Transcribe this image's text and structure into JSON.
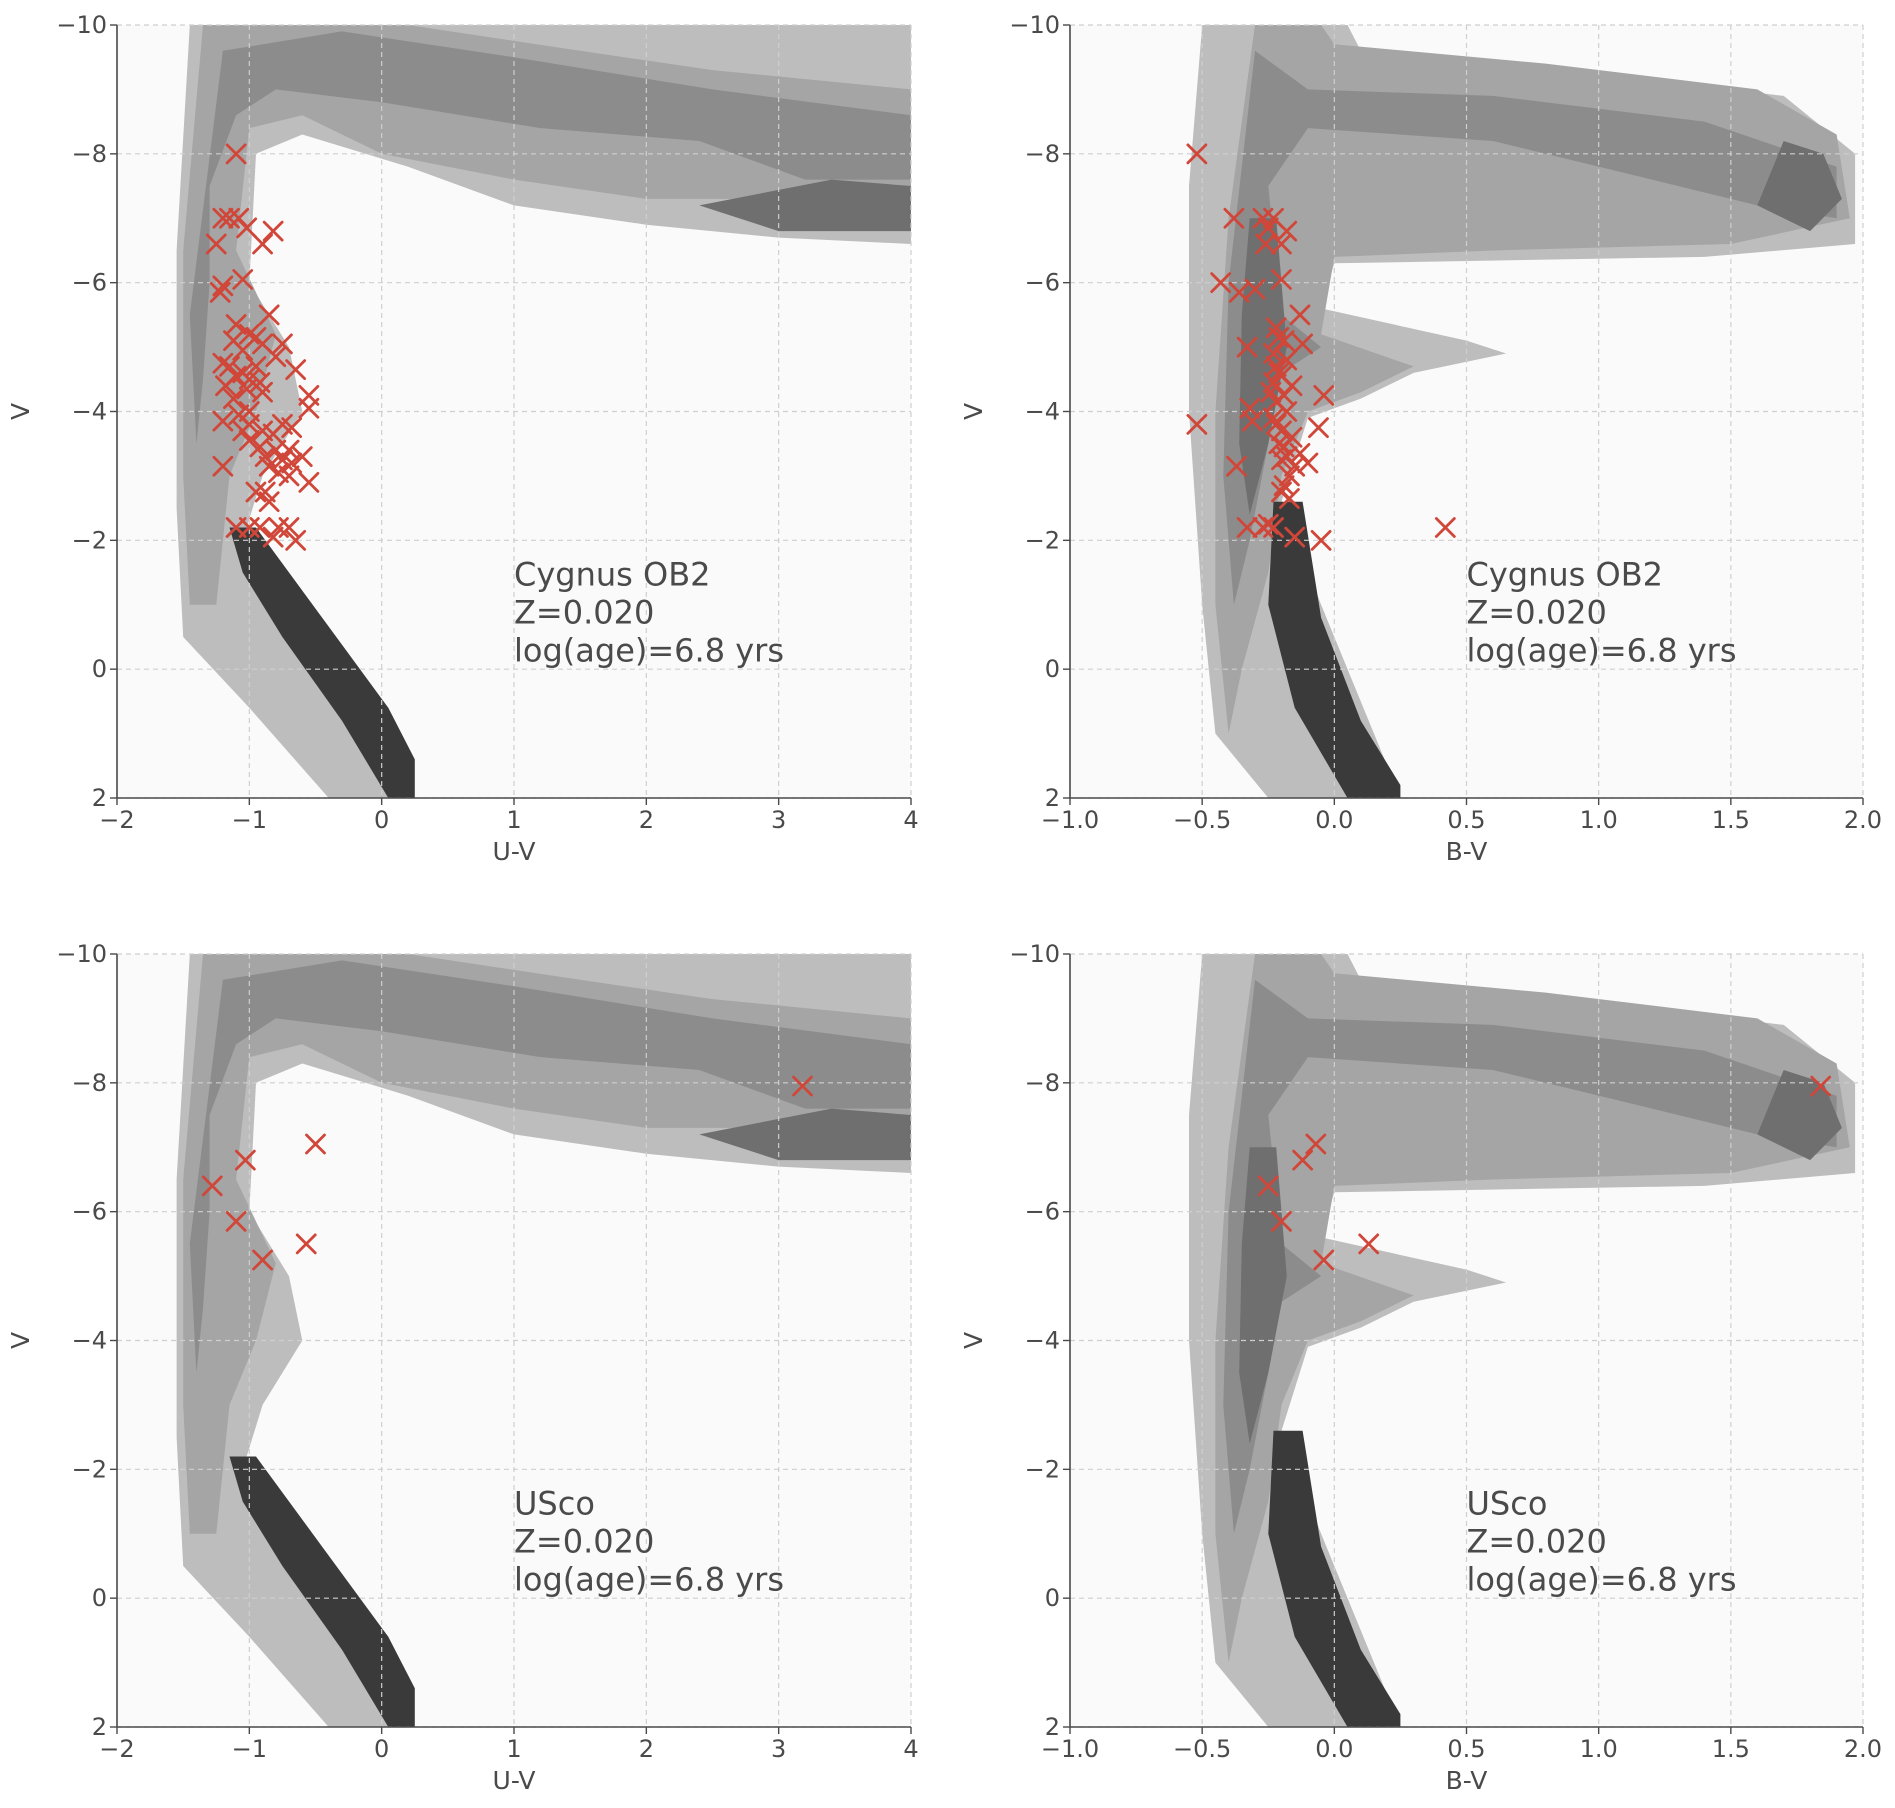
{
  "chart_data": [
    {
      "type": "scatter",
      "panel": "top-left",
      "xlabel": "U-V",
      "ylabel": "V",
      "xlim": [
        -2,
        4
      ],
      "ylim": [
        -10,
        2
      ],
      "y_inverted": true,
      "xticks": [
        -2,
        -1,
        0,
        1,
        2,
        3,
        4
      ],
      "yticks": [
        -10,
        -8,
        -6,
        -4,
        -2,
        0,
        2
      ],
      "xtick_labels": [
        "−2",
        "−1",
        "0",
        "1",
        "2",
        "3",
        "4"
      ],
      "ytick_labels": [
        "−10",
        "−8",
        "−6",
        "−4",
        "−2",
        "0",
        "2"
      ],
      "grid": true,
      "annotation": [
        "Cygnus OB2",
        "Z=0.020",
        "log(age)=6.8 yrs"
      ],
      "annotation_pos": [
        1.0,
        -1.3
      ],
      "marker_color": "#d0473a",
      "marker": "x",
      "background_density": "grayscale filled contours of a synthetic isochrone population",
      "points": [
        [
          -1.1,
          -8.0
        ],
        [
          -1.2,
          -7.0
        ],
        [
          -1.15,
          -7.0
        ],
        [
          -1.08,
          -7.0
        ],
        [
          -1.02,
          -6.85
        ],
        [
          -0.82,
          -6.8
        ],
        [
          -1.25,
          -6.6
        ],
        [
          -0.9,
          -6.6
        ],
        [
          -1.05,
          -6.05
        ],
        [
          -1.2,
          -5.95
        ],
        [
          -1.22,
          -5.85
        ],
        [
          -0.85,
          -5.5
        ],
        [
          -1.1,
          -5.35
        ],
        [
          -1.0,
          -5.2
        ],
        [
          -0.95,
          -5.15
        ],
        [
          -1.12,
          -5.1
        ],
        [
          -0.9,
          -5.05
        ],
        [
          -0.75,
          -5.05
        ],
        [
          -1.05,
          -4.95
        ],
        [
          -0.8,
          -4.85
        ],
        [
          -1.2,
          -4.75
        ],
        [
          -1.15,
          -4.7
        ],
        [
          -0.95,
          -4.7
        ],
        [
          -0.65,
          -4.65
        ],
        [
          -1.05,
          -4.6
        ],
        [
          -1.1,
          -4.55
        ],
        [
          -1.0,
          -4.5
        ],
        [
          -0.92,
          -4.45
        ],
        [
          -1.18,
          -4.4
        ],
        [
          -1.02,
          -4.35
        ],
        [
          -0.9,
          -4.3
        ],
        [
          -0.55,
          -4.25
        ],
        [
          -1.12,
          -4.2
        ],
        [
          -0.55,
          -4.05
        ],
        [
          -1.0,
          -4.0
        ],
        [
          -1.08,
          -3.95
        ],
        [
          -1.2,
          -3.85
        ],
        [
          -1.0,
          -3.8
        ],
        [
          -0.75,
          -3.8
        ],
        [
          -0.68,
          -3.75
        ],
        [
          -1.05,
          -3.7
        ],
        [
          -0.9,
          -3.7
        ],
        [
          -0.82,
          -3.65
        ],
        [
          -1.0,
          -3.55
        ],
        [
          -0.92,
          -3.45
        ],
        [
          -0.7,
          -3.4
        ],
        [
          -0.8,
          -3.4
        ],
        [
          -0.6,
          -3.3
        ],
        [
          -0.88,
          -3.3
        ],
        [
          -0.75,
          -3.25
        ],
        [
          -0.68,
          -3.2
        ],
        [
          -1.2,
          -3.15
        ],
        [
          -0.85,
          -3.15
        ],
        [
          -0.78,
          -3.05
        ],
        [
          -0.7,
          -3.0
        ],
        [
          -0.55,
          -2.9
        ],
        [
          -0.95,
          -2.75
        ],
        [
          -0.88,
          -2.75
        ],
        [
          -0.85,
          -2.6
        ],
        [
          -1.1,
          -2.2
        ],
        [
          -1.0,
          -2.2
        ],
        [
          -0.92,
          -2.2
        ],
        [
          -0.78,
          -2.2
        ],
        [
          -0.7,
          -2.2
        ],
        [
          -0.82,
          -2.05
        ],
        [
          -0.65,
          -2.0
        ]
      ]
    },
    {
      "type": "scatter",
      "panel": "top-right",
      "xlabel": "B-V",
      "ylabel": "V",
      "xlim": [
        -1.0,
        2.0
      ],
      "ylim": [
        -10,
        2
      ],
      "y_inverted": true,
      "xticks": [
        -1.0,
        -0.5,
        0.0,
        0.5,
        1.0,
        1.5,
        2.0
      ],
      "yticks": [
        -10,
        -8,
        -6,
        -4,
        -2,
        0,
        2
      ],
      "xtick_labels": [
        "−1.0",
        "−0.5",
        "0.0",
        "0.5",
        "1.0",
        "1.5",
        "2.0"
      ],
      "ytick_labels": [
        "−10",
        "−8",
        "−6",
        "−4",
        "−2",
        "0",
        "2"
      ],
      "grid": true,
      "annotation": [
        "Cygnus OB2",
        "Z=0.020",
        "log(age)=6.8 yrs"
      ],
      "annotation_pos": [
        0.5,
        -1.3
      ],
      "marker_color": "#d0473a",
      "marker": "x",
      "points": [
        [
          -0.52,
          -8.0
        ],
        [
          -0.38,
          -7.0
        ],
        [
          -0.27,
          -7.0
        ],
        [
          -0.23,
          -7.0
        ],
        [
          -0.25,
          -6.85
        ],
        [
          -0.18,
          -6.8
        ],
        [
          -0.26,
          -6.6
        ],
        [
          -0.2,
          -6.6
        ],
        [
          -0.43,
          -6.0
        ],
        [
          -0.2,
          -6.05
        ],
        [
          -0.36,
          -5.85
        ],
        [
          -0.3,
          -5.9
        ],
        [
          -0.13,
          -5.5
        ],
        [
          -0.22,
          -5.3
        ],
        [
          -0.21,
          -5.15
        ],
        [
          -0.19,
          -5.1
        ],
        [
          -0.12,
          -5.05
        ],
        [
          -0.33,
          -5.0
        ],
        [
          -0.23,
          -4.9
        ],
        [
          -0.18,
          -4.8
        ],
        [
          -0.22,
          -4.7
        ],
        [
          -0.21,
          -4.6
        ],
        [
          -0.2,
          -4.55
        ],
        [
          -0.23,
          -4.45
        ],
        [
          -0.16,
          -4.4
        ],
        [
          -0.24,
          -4.3
        ],
        [
          -0.19,
          -4.25
        ],
        [
          -0.04,
          -4.25
        ],
        [
          -0.22,
          -4.15
        ],
        [
          -0.32,
          -4.05
        ],
        [
          -0.18,
          -4.0
        ],
        [
          -0.23,
          -3.9
        ],
        [
          -0.31,
          -3.85
        ],
        [
          -0.22,
          -3.8
        ],
        [
          -0.52,
          -3.8
        ],
        [
          -0.06,
          -3.75
        ],
        [
          -0.2,
          -3.7
        ],
        [
          -0.16,
          -3.6
        ],
        [
          -0.21,
          -3.5
        ],
        [
          -0.19,
          -3.45
        ],
        [
          -0.13,
          -3.35
        ],
        [
          -0.18,
          -3.3
        ],
        [
          -0.2,
          -3.25
        ],
        [
          -0.1,
          -3.2
        ],
        [
          -0.15,
          -3.15
        ],
        [
          -0.37,
          -3.15
        ],
        [
          -0.17,
          -3.0
        ],
        [
          -0.19,
          -2.85
        ],
        [
          -0.2,
          -2.75
        ],
        [
          -0.17,
          -2.65
        ],
        [
          -0.33,
          -2.2
        ],
        [
          -0.27,
          -2.2
        ],
        [
          -0.23,
          -2.2
        ],
        [
          -0.25,
          -2.25
        ],
        [
          -0.15,
          -2.05
        ],
        [
          -0.05,
          -2.0
        ],
        [
          0.42,
          -2.2
        ]
      ]
    },
    {
      "type": "scatter",
      "panel": "bottom-left",
      "xlabel": "U-V",
      "ylabel": "V",
      "xlim": [
        -2,
        4
      ],
      "ylim": [
        -10,
        2
      ],
      "y_inverted": true,
      "xticks": [
        -2,
        -1,
        0,
        1,
        2,
        3,
        4
      ],
      "yticks": [
        -10,
        -8,
        -6,
        -4,
        -2,
        0,
        2
      ],
      "xtick_labels": [
        "−2",
        "−1",
        "0",
        "1",
        "2",
        "3",
        "4"
      ],
      "ytick_labels": [
        "−10",
        "−8",
        "−6",
        "−4",
        "−2",
        "0",
        "2"
      ],
      "grid": true,
      "annotation": [
        "USco",
        "Z=0.020",
        "log(age)=6.8 yrs"
      ],
      "annotation_pos": [
        1.0,
        -1.3
      ],
      "marker_color": "#d0473a",
      "marker": "x",
      "points": [
        [
          3.18,
          -7.95
        ],
        [
          -0.5,
          -7.05
        ],
        [
          -1.03,
          -6.8
        ],
        [
          -1.28,
          -6.4
        ],
        [
          -1.1,
          -5.85
        ],
        [
          -0.57,
          -5.5
        ],
        [
          -0.9,
          -5.25
        ]
      ]
    },
    {
      "type": "scatter",
      "panel": "bottom-right",
      "xlabel": "B-V",
      "ylabel": "V",
      "xlim": [
        -1.0,
        2.0
      ],
      "ylim": [
        -10,
        2
      ],
      "y_inverted": true,
      "xticks": [
        -1.0,
        -0.5,
        0.0,
        0.5,
        1.0,
        1.5,
        2.0
      ],
      "yticks": [
        -10,
        -8,
        -6,
        -4,
        -2,
        0,
        2
      ],
      "xtick_labels": [
        "−1.0",
        "−0.5",
        "0.0",
        "0.5",
        "1.0",
        "1.5",
        "2.0"
      ],
      "ytick_labels": [
        "−10",
        "−8",
        "−6",
        "−4",
        "−2",
        "0",
        "2"
      ],
      "grid": true,
      "annotation": [
        "USco",
        "Z=0.020",
        "log(age)=6.8 yrs"
      ],
      "annotation_pos": [
        0.5,
        -1.3
      ],
      "marker_color": "#d0473a",
      "marker": "x",
      "points": [
        [
          1.84,
          -7.95
        ],
        [
          -0.07,
          -7.05
        ],
        [
          -0.12,
          -6.8
        ],
        [
          -0.25,
          -6.4
        ],
        [
          -0.2,
          -5.85
        ],
        [
          0.13,
          -5.5
        ],
        [
          -0.04,
          -5.25
        ]
      ]
    }
  ],
  "colors": {
    "axes": "#4a4a4a",
    "grid": "#cfcfcf",
    "marker": "#d0473a",
    "density_levels": [
      "#fafafa",
      "#bdbdbd",
      "#a5a5a5",
      "#8c8c8c",
      "#6f6f6f",
      "#3a3a3a"
    ]
  }
}
